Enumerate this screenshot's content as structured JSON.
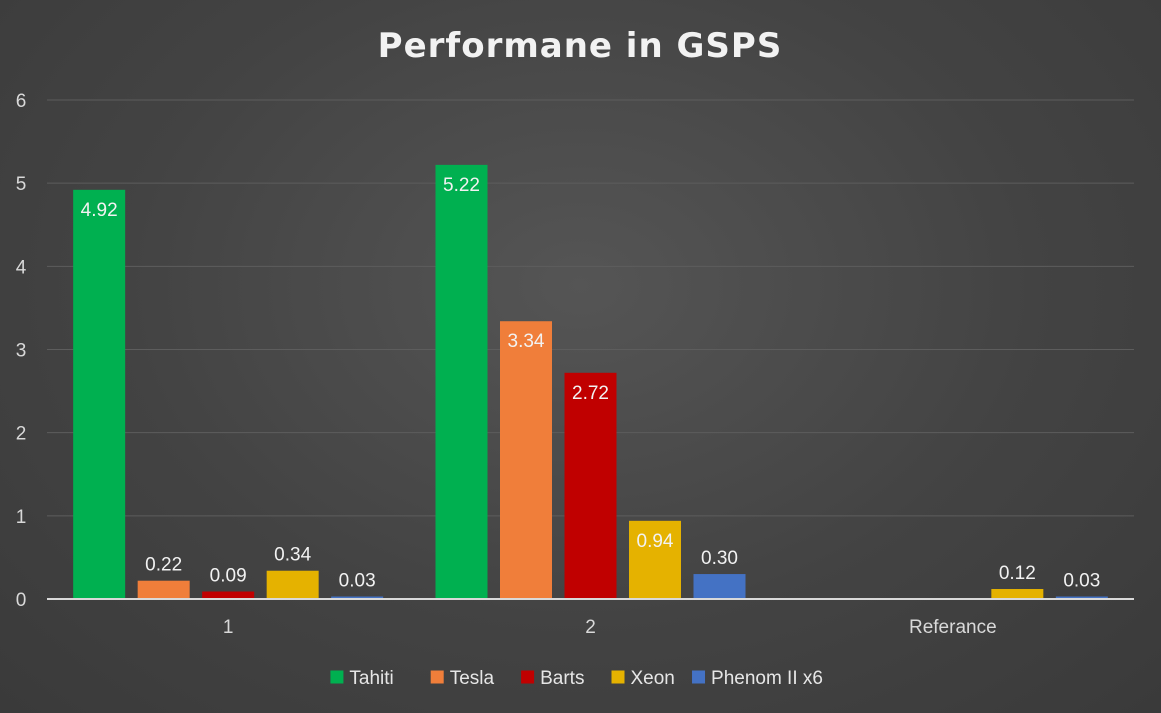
{
  "chart_data": {
    "type": "bar",
    "title": "Performane in GSPS",
    "xlabel": "",
    "ylabel": "",
    "categories": [
      "1",
      "2",
      "Referance"
    ],
    "ylim": [
      0,
      6
    ],
    "yticks": [
      0,
      1,
      2,
      3,
      4,
      5,
      6
    ],
    "grid": true,
    "legend_position": "bottom",
    "series": [
      {
        "name": "Tahiti",
        "color": "#00b050",
        "values": [
          4.92,
          5.22,
          null
        ],
        "labels": [
          "4.92",
          "5.22",
          ""
        ]
      },
      {
        "name": "Tesla",
        "color": "#f07e3a",
        "values": [
          0.22,
          3.34,
          null
        ],
        "labels": [
          "0.22",
          "3.34",
          ""
        ]
      },
      {
        "name": "Barts",
        "color": "#c00000",
        "values": [
          0.09,
          2.72,
          null
        ],
        "labels": [
          "0.09",
          "2.72",
          ""
        ]
      },
      {
        "name": "Xeon",
        "color": "#e5b200",
        "values": [
          0.34,
          0.94,
          0.12
        ],
        "labels": [
          "0.34",
          "0.94",
          "0.12"
        ]
      },
      {
        "name": "Phenom II x6",
        "color": "#4472c4",
        "values": [
          0.03,
          0.3,
          0.03
        ],
        "labels": [
          "0.03",
          "0.30",
          "0.03"
        ]
      }
    ]
  }
}
